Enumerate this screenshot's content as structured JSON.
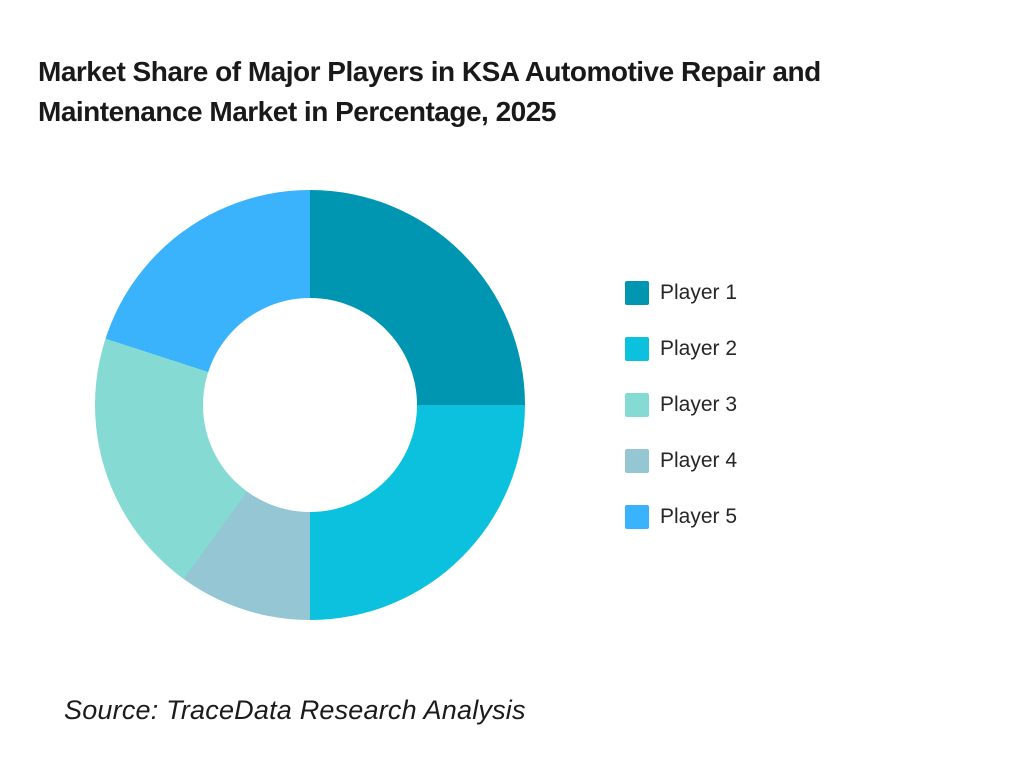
{
  "title": {
    "text": "Market Share of Major Players in KSA Automotive Repair and Maintenance Market in Percentage, 2025",
    "lines": [
      "Market Share of Major Players in KSA Automotive Repair and",
      "Maintenance Market in Percentage, 2025"
    ]
  },
  "source": "Source: TraceData Research Analysis",
  "chart_data": {
    "type": "pie",
    "subtype": "donut",
    "title": "Market Share of Major Players in KSA Automotive Repair and Maintenance Market in Percentage, 2025",
    "unit": "percent",
    "categories": [
      "Player 1",
      "Player 2",
      "Player 3",
      "Player 4",
      "Player 5"
    ],
    "values": [
      25,
      25,
      20,
      10,
      20
    ],
    "legend": [
      {
        "label": "Player 1",
        "value": 25,
        "color": "#0096B1"
      },
      {
        "label": "Player 2",
        "value": 25,
        "color": "#0CC1DE"
      },
      {
        "label": "Player 3",
        "value": 20,
        "color": "#85DBD4"
      },
      {
        "label": "Player 4",
        "value": 10,
        "color": "#94C6D3"
      },
      {
        "label": "Player 5",
        "value": 20,
        "color": "#3AB2FC"
      }
    ],
    "segments_clockwise": [
      {
        "label": "Player 1",
        "value": 25,
        "color": "#0096B1"
      },
      {
        "label": "Player 2",
        "value": 25,
        "color": "#0CC1DE"
      },
      {
        "label": "Player 4",
        "value": 10,
        "color": "#94C6D3"
      },
      {
        "label": "Player 3",
        "value": 20,
        "color": "#85DBD4"
      },
      {
        "label": "Player 5",
        "value": 20,
        "color": "#3AB2FC"
      }
    ],
    "start_angle_deg": 0,
    "direction": "clockwise",
    "hole_ratio": 0.5,
    "legend_position": "right",
    "data_labels": "none",
    "background_color": "#FFFFFF"
  }
}
